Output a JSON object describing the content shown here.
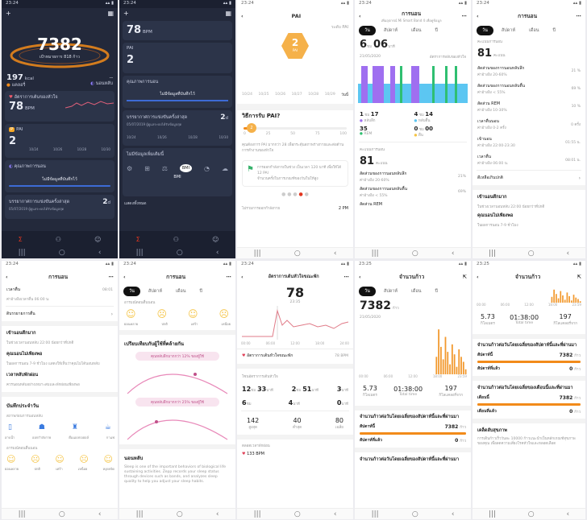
{
  "times": [
    "23:24",
    "23:24",
    "23:24",
    "23:24",
    "23:24",
    "23:24",
    "23:24",
    "23:24",
    "23:25",
    "23:25"
  ],
  "p1": {
    "steps": "7382",
    "steps_sub": "เป้าหมายการ 818 ก้าว",
    "kcal": "197",
    "kcal_unit": "kcal",
    "cal_label": "แคลอรี่",
    "dash": "--",
    "sleep_label": "นอนหลับ",
    "hr_title": "อัตราการเต้นของหัวใจ",
    "hr_val": "78",
    "hr_unit": "BPM",
    "pai_title": "PAI",
    "pai_val": "2",
    "pai_ticks": [
      "10/24",
      "10/26",
      "10/28",
      "10/30"
    ],
    "sleep_title": "คุณภาพการนอน",
    "sleep_none": "ไม่มีข้อมูลที่บันทึกไว้",
    "data_title": "บรรยากาศการแข่งขันครั้งล่าสุด",
    "data_sub": "05/07/2019 ผู้ดูแลระบบได้รับข้อมูลสุด",
    "data_val": "2",
    "data_unit": "d"
  },
  "p2": {
    "hr_val": "78",
    "hr_unit": "BPM",
    "pai_title": "PAI",
    "pai_val": "2",
    "sleep_title": "คุณภาพการนอน",
    "sleep_none": "ไม่มีข้อมูลที่บันทึกไว้",
    "data_title": "บรรยากาศการแข่งขันครั้งล่าสุด",
    "data_sub": "05/07/2019 ผู้ดูแลระบบได้รับข้อมูลสุด",
    "data_val": "2",
    "data_unit": "d",
    "ticks": [
      "10/24",
      "10/26",
      "10/28",
      "10/30"
    ],
    "tools_title": "ไม่มีข้อมูลเพิ่มเติมนี้",
    "bmi_label": "BMI",
    "more": "แสดงทั้งหมด"
  },
  "p3": {
    "title": "PAI",
    "top_label": "ระดับ PAI",
    "pai_val": "2",
    "pai_unit": "PAI",
    "days": [
      "10/24",
      "10/25",
      "10/26",
      "10/27",
      "10/28",
      "10/29",
      "วันนี้"
    ],
    "how_title": "วิธีการรับ PAI?",
    "scale": [
      "0",
      "25",
      "50",
      "75",
      "100"
    ],
    "desc": "คุณต้องการ PAI มากกว่า 28 เพื่อกระตุ้นสภาพร่างกายและต่อต้านการทำงานของหัวใจ",
    "tip": "การออกกำลังกายในช่วง เป็นเวลา 120 นาที เพื่อให้ได้ 12 PAI",
    "tip2": "จำนวนครั้งในการเกณฑ์ของวันในให้สูง",
    "pm": "2 PM",
    "foot": "ไม่รวมการออกกำลังกาย"
  },
  "p4": {
    "title": "การนอน",
    "subtitle": "เพิ่มอุปกรณ์ Mi Smart Band 4 เพื่อดูข้อมูล",
    "tabs": [
      "วัน",
      "สัปดาห์",
      "เดือน",
      "ปี"
    ],
    "hours": "6",
    "h_unit": "ชม",
    "mins": "06",
    "m_unit": "นาที",
    "date": "21/05/2020",
    "note": "อัตราการหลับของหัวใจ",
    "s1_h": "1",
    "s1_m": "17",
    "s1_l": "หลับลึก",
    "s2_h": "4",
    "s2_m": "14",
    "s2_l": "หลับตื้น",
    "s3_m": "35",
    "s3_l": "REM",
    "s4_h": "0",
    "s4_m": "00",
    "s4_l": "ตื่น",
    "score_title": "คะแนนการนอน",
    "score": "81",
    "score_unit": "คะแนน",
    "r1": "สัดส่วนของการนอนหลับลึก",
    "r1s": "ค่าอ้างอิง 20-60%",
    "r1v": "21%",
    "r2": "สัดส่วนของการนอนหลับตื้น",
    "r2s": "ค่าอ้างอิง < 55%",
    "r2v": "69%",
    "r3": "สัดส่วน REM"
  },
  "p5": {
    "title": "การนอน",
    "tabs": [
      "วัน",
      "สัปดาห์",
      "เดือน",
      "ปี"
    ],
    "score_title": "คะแนนการนอน",
    "score": "81",
    "score_unit": "คะแนน",
    "rows": [
      {
        "l": "สัดส่วนของการนอนหลับลึก",
        "s": "ค่าอ้างอิง 20-60%",
        "v": "21 %"
      },
      {
        "l": "สัดส่วนของการนอนหลับตื้น",
        "s": "ค่าอ้างอิง < 55%",
        "v": "69 %"
      },
      {
        "l": "สัดส่วน REM",
        "s": "ค่าอ้างอิง 10-30%",
        "v": "10 %"
      },
      {
        "l": "เวลาตื่นนอน",
        "s": "ค่าอ้างอิง 0-2 ครั้ง",
        "v": "0 ครั้ง"
      },
      {
        "l": "เข้านอน",
        "s": "ค่าอ้างอิง 22:00-23:30",
        "v": "01:55 น."
      },
      {
        "l": "เวลาตื่น",
        "s": "ค่าอ้างอิง 06:00 น.",
        "v": "08:01 น."
      }
    ],
    "quality": "ดีเหลือเกินปกติ",
    "know": "เข้านอนดึกมาก",
    "know_txt": "ในช่วงเวลานอนหลับ 22:00 น้อยกว่าที่ปกติ",
    "tip": "คุณนอนไม่เพียงพอ",
    "tip_txt": "ในผลการนอน 7-9 ชั่วโมง"
  },
  "p6": {
    "title": "การนอน",
    "line1": "เวลาตื่น",
    "line1v": "08:01",
    "line2": "ค่าอ้างอิงเวลาตื่น 06:00 น.",
    "link": "ดิบรรยายการตื่น",
    "s1": "เข้านอนดึกมาก",
    "s1t": "ในช่วงเวลานอนหลับ 22:00 น้อยกว่าที่ปกติ",
    "s2": "คุณนอนไม่เพียงพอ",
    "s2t": "ในผลการนอน 7-9 ชั่วโมง แสดงให้เห็นว่าคุณไม่ได้นอนหลับ",
    "s3": "เวลาหลับพักผ่อน",
    "s3t": "ควรนอนหลับอย่างเหมาะสมและพักผ่อนเพียงพอ",
    "log_title": "บันทึกประจำวัน",
    "log_sub": "สภาพก่อนการนอนหลับ",
    "icons": [
      "อาบน้ำ",
      "ออกกำลังกาย",
      "ดื่มแอลกอฮอล์",
      "กาแฟ"
    ],
    "mood_title": "อารมณ์ตอนตื่นนอน",
    "moods": [
      "ผ่อนคลาย",
      "ปกติ",
      "เศร้า",
      "เหนื่อย",
      "หงุดหงิด"
    ]
  },
  "p7": {
    "title": "การนอน",
    "tabs": [
      "วัน",
      "สัปดาห์",
      "เดือน",
      "ปี"
    ],
    "mood_title": "อารมณ์ตอนตื่นนอน",
    "moods": [
      "ผ่อนคลาย",
      "ปกติ",
      "เศร้า",
      "เหนื่อย"
    ],
    "cmp_title": "เปรียบเทียบกับผู้ใช้ที่คล้ายกัน",
    "cmp1": "คุณหลับลึกมากกว่า 12% ของผู้ใช้",
    "cmp2": "คุณหลับลึกมากกว่า 25% ของผู้ใช้",
    "cmp_title2": "ช่วงการนอนหลับ",
    "about": "นอนหลับ",
    "about_txt": "Sleep is one of the important behaviors of biological life sustaining activities. Zepp records your sleep status through devices such as bands, and analyzes sleep quality to help you adjust your sleep habits."
  },
  "p8": {
    "title": "อัตราการเต้นหัวใจขณะพัก",
    "hr": "78",
    "hr_time": "23:35",
    "ticks": [
      "00:00",
      "06:00",
      "12:00",
      "18:00",
      "24:00"
    ],
    "legend": "อัตราการเต้นหัวใจขณะพัก",
    "legend_v": "78 BPM",
    "zone_title": "โซนอัตราการเต้นหัวใจ",
    "z": [
      {
        "a": "12",
        "u": "ชม",
        "b": "33",
        "c": "นาที"
      },
      {
        "a": "2",
        "u": "ชม",
        "b": "51",
        "c": "นาที"
      },
      {
        "a": "3",
        "u": "ชม",
        "b": "",
        "c": "นาที"
      }
    ],
    "z2": [
      {
        "a": "6",
        "u": "ชม"
      },
      {
        "a": "4",
        "u": "นาที"
      },
      {
        "a": "0",
        "u": "นาที"
      }
    ],
    "stats": [
      {
        "v": "142",
        "l": "สูงสุด"
      },
      {
        "v": "40",
        "l": "ต่ำสุด"
      },
      {
        "v": "80",
        "l": "เฉลี่ย"
      }
    ],
    "rest": "ตลอดเวลาพักผ่อน",
    "rest_v": "133 BPM"
  },
  "p9": {
    "title": "จำนวนก้าว",
    "tabs": [
      "วัน",
      "สัปดาห์",
      "เดือน",
      "ปี"
    ],
    "steps": "7382",
    "steps_unit": "ก้าว",
    "date": "21/05/2020",
    "ticks": [
      "00:00",
      "06:00",
      "12:00",
      "18:00",
      "23:59"
    ],
    "bars": [
      0,
      0,
      0,
      0,
      0,
      0,
      0,
      0,
      0,
      0,
      0,
      0,
      0,
      0,
      0,
      0,
      0,
      0,
      0,
      0,
      0,
      0,
      0,
      0,
      0,
      0,
      0,
      0,
      0,
      0,
      0,
      0,
      0,
      0,
      0.35,
      0.9,
      0.55,
      0.3,
      0.75,
      0.45,
      0.2,
      0.6,
      0.4,
      0.15,
      0.5,
      0.35,
      0.25,
      0.1
    ],
    "km": "5.73",
    "km_l": "กิโลเมตร",
    "time": "01:38:00",
    "time_l": "Total time",
    "kcal": "197",
    "kcal_l": "กิโลแคลอรี่จาก",
    "cmp_title": "จำนวนก้าวต่อวันโดยเฉลี่ยของสัปดาห์นี้และที่ผ่านมา",
    "this_week": "สัปดาห์นี้",
    "this_v": "7382",
    "this_u": "ก้าว",
    "last_week": "สัปดาห์ที่แล้ว",
    "last_v": "0",
    "last_u": "ก้าว",
    "cmp_title2": "จำนวนก้าวต่อวันโดยเฉลี่ยของสัปดาห์นี้และที่ผ่านมา"
  },
  "p10": {
    "title": "จำนวนก้าว",
    "ticks": [
      "00:00",
      "06:00",
      "12:00",
      "18:00",
      "23:59"
    ],
    "bars": [
      0,
      0,
      0,
      0,
      0,
      0,
      0,
      0,
      0,
      0,
      0,
      0,
      0,
      0,
      0,
      0,
      0,
      0,
      0,
      0,
      0,
      0,
      0,
      0,
      0,
      0,
      0,
      0,
      0,
      0,
      0,
      0,
      0,
      0,
      0.4,
      0.9,
      0.6,
      0.3,
      0.8,
      0.5,
      0.2,
      0.7,
      0.45,
      0.15,
      0.55,
      0.35,
      0.25,
      0.1
    ],
    "km": "5.73",
    "km_l": "กิโลเมตร",
    "time": "01:38:00",
    "time_l": "Total time",
    "kcal": "197",
    "kcal_l": "กิโลแคลอรี่จาก",
    "c1_title": "จำนวนก้าวต่อวันโดยเฉลี่ยของสัปดาห์นี้และที่ผ่านมา",
    "c1a": "สัปดาห์นี้",
    "c1av": "7382",
    "c1b": "สัปดาห์ที่แล้ว",
    "c1bv": "0",
    "u": "ก้าว",
    "c2_title": "จำนวนก้าวต่อวันโดยเฉลี่ยของเดือนนี้และที่ผ่านมา",
    "c2a": "เดือนนี้",
    "c2av": "7382",
    "c2b": "เดือนที่แล้ว",
    "c2bv": "0",
    "know": "เคล็ดลับสุขภาพ",
    "know_txt": "การเดินก้าวเร็ววันละ 10000 ก้าวแนะนำเป็นหลักเกณฑ์สุขภาพของคุณ เพื่อลดความเสี่ยงโรคหัวใจและหลอดเลือด"
  }
}
